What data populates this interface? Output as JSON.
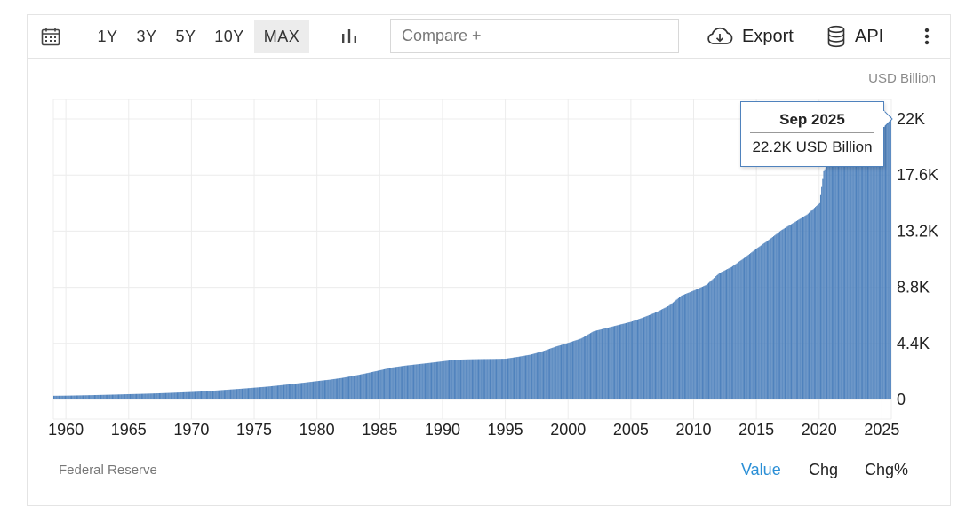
{
  "toolbar": {
    "calendar_icon": "calendar-icon",
    "ranges": [
      "1Y",
      "3Y",
      "5Y",
      "10Y",
      "MAX"
    ],
    "active_range": "MAX",
    "chart_type_icon": "bar-chart-icon",
    "compare_placeholder": "Compare +",
    "export_label": "Export",
    "export_icon": "cloud-download-icon",
    "api_label": "API",
    "api_icon": "database-icon",
    "more_icon": "vertical-dots-icon"
  },
  "unit_label": "USD Billion",
  "source": "Federal Reserve",
  "footer_tabs": {
    "value": "Value",
    "chg": "Chg",
    "chg_pct": "Chg%"
  },
  "colors": {
    "bar": "#4f82bd",
    "active_tab": "#2b8fd6",
    "grid": "#ececec"
  },
  "tooltip": {
    "date": "Sep 2025",
    "value": "22.2K USD Billion"
  },
  "chart_data": {
    "type": "bar",
    "title": "",
    "xlabel": "",
    "ylabel": "USD Billion",
    "xlim": [
      1959,
      2025.75
    ],
    "ylim": [
      0,
      22000
    ],
    "x_ticks": [
      "1960",
      "1965",
      "1970",
      "1975",
      "1980",
      "1985",
      "1990",
      "1995",
      "2000",
      "2005",
      "2010",
      "2015",
      "2020",
      "2025"
    ],
    "y_ticks": [
      "0",
      "4.4K",
      "8.8K",
      "13.2K",
      "17.6K",
      "22K"
    ],
    "grid": true,
    "series": [
      {
        "points": [
          [
            1959,
            290
          ],
          [
            1960,
            300
          ],
          [
            1961,
            320
          ],
          [
            1962,
            340
          ],
          [
            1963,
            365
          ],
          [
            1964,
            390
          ],
          [
            1965,
            420
          ],
          [
            1966,
            445
          ],
          [
            1967,
            475
          ],
          [
            1968,
            510
          ],
          [
            1969,
            550
          ],
          [
            1970,
            590
          ],
          [
            1971,
            640
          ],
          [
            1972,
            710
          ],
          [
            1973,
            780
          ],
          [
            1974,
            850
          ],
          [
            1975,
            930
          ],
          [
            1976,
            1010
          ],
          [
            1977,
            1110
          ],
          [
            1978,
            1220
          ],
          [
            1979,
            1330
          ],
          [
            1980,
            1450
          ],
          [
            1981,
            1560
          ],
          [
            1982,
            1700
          ],
          [
            1983,
            1880
          ],
          [
            1984,
            2080
          ],
          [
            1985,
            2300
          ],
          [
            1986,
            2520
          ],
          [
            1987,
            2660
          ],
          [
            1988,
            2770
          ],
          [
            1989,
            2880
          ],
          [
            1990,
            3000
          ],
          [
            1991,
            3120
          ],
          [
            1992,
            3150
          ],
          [
            1993,
            3170
          ],
          [
            1994,
            3180
          ],
          [
            1995,
            3200
          ],
          [
            1996,
            3350
          ],
          [
            1997,
            3520
          ],
          [
            1998,
            3800
          ],
          [
            1999,
            4150
          ],
          [
            2000,
            4450
          ],
          [
            2001,
            4780
          ],
          [
            2002,
            5350
          ],
          [
            2003,
            5600
          ],
          [
            2004,
            5850
          ],
          [
            2005,
            6100
          ],
          [
            2006,
            6450
          ],
          [
            2007,
            6850
          ],
          [
            2008,
            7350
          ],
          [
            2009,
            8150
          ],
          [
            2010,
            8550
          ],
          [
            2011,
            9000
          ],
          [
            2012,
            9900
          ],
          [
            2013,
            10400
          ],
          [
            2014,
            11100
          ],
          [
            2015,
            11850
          ],
          [
            2016,
            12550
          ],
          [
            2017,
            13300
          ],
          [
            2018,
            13900
          ],
          [
            2019,
            14500
          ],
          [
            2020.0,
            15400
          ],
          [
            2020.33,
            17900
          ],
          [
            2020.5,
            18200
          ],
          [
            2021,
            19400
          ],
          [
            2022,
            20900
          ],
          [
            2023,
            21000
          ],
          [
            2024,
            21300
          ],
          [
            2025,
            21900
          ],
          [
            2025.67,
            22200
          ]
        ]
      }
    ]
  }
}
